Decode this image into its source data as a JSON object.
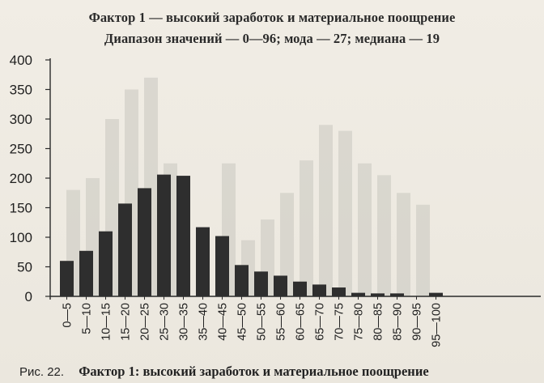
{
  "title_line1": "Фактор 1 — высокий заработок и материальное поощрение",
  "title_line2": "Диапазон значений — 0—96; мода — 27; медиана — 19",
  "caption": {
    "figure": "Рис. 22.",
    "text": "Фактор 1: высокий заработок и материальное поощрение"
  },
  "colors": {
    "bar": "#2e2e2e",
    "ghost_bar": "#c9c6bf",
    "background": "#eeeae1"
  },
  "chart_data": {
    "type": "bar",
    "categories": [
      "0—5",
      "5—10",
      "10—15",
      "15—20",
      "20—25",
      "25—30",
      "30—35",
      "35—40",
      "40—45",
      "45—50",
      "50—55",
      "55—60",
      "60—65",
      "65—70",
      "70—75",
      "75—80",
      "80—85",
      "85—90",
      "90—95",
      "95—100"
    ],
    "values": [
      60,
      77,
      110,
      157,
      183,
      206,
      204,
      117,
      102,
      53,
      42,
      35,
      25,
      20,
      15,
      6,
      5,
      5,
      0,
      6
    ],
    "yticks": [
      0,
      50,
      100,
      150,
      200,
      250,
      300,
      350,
      400
    ],
    "ylim": [
      0,
      400
    ],
    "title": "",
    "xlabel": "",
    "ylabel": "",
    "grid": false,
    "legend": "none",
    "show_through": {
      "values": [
        180,
        200,
        300,
        350,
        370,
        225,
        0,
        0,
        225,
        95,
        130,
        175,
        230,
        290,
        280,
        225,
        205,
        175,
        155,
        0
      ]
    }
  }
}
